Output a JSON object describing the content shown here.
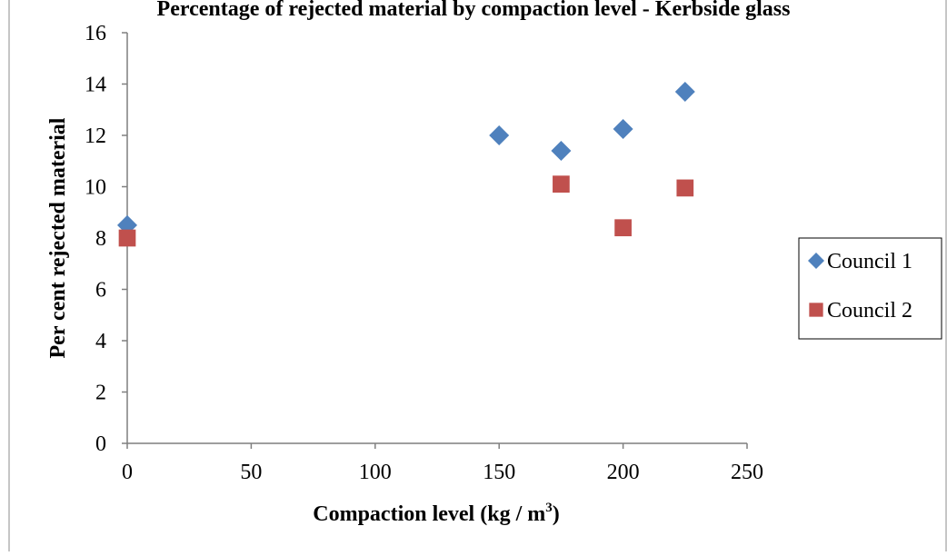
{
  "chart_data": {
    "type": "scatter",
    "title": "Percentage of rejected material by compaction level - Kerbside glass",
    "xlabel": "Compaction level (kg / m",
    "xlabel_sup": "3",
    "xlabel_end": ")",
    "ylabel": "Per cent rejected material",
    "xlim": [
      0,
      250
    ],
    "ylim": [
      0,
      16
    ],
    "x_ticks": [
      0,
      50,
      100,
      150,
      200,
      250
    ],
    "y_ticks": [
      0,
      2,
      4,
      6,
      8,
      10,
      12,
      14,
      16
    ],
    "grid": false,
    "legend_position": "right",
    "series": [
      {
        "name": "Council 1",
        "marker": "diamond",
        "color": "#4F81BD",
        "points": [
          {
            "x": 0,
            "y": 8.5
          },
          {
            "x": 150,
            "y": 12.0
          },
          {
            "x": 175,
            "y": 11.4
          },
          {
            "x": 200,
            "y": 12.25
          },
          {
            "x": 225,
            "y": 13.7
          }
        ]
      },
      {
        "name": "Council 2",
        "marker": "square",
        "color": "#C0504D",
        "points": [
          {
            "x": 0,
            "y": 8.0
          },
          {
            "x": 175,
            "y": 10.1
          },
          {
            "x": 200,
            "y": 8.4
          },
          {
            "x": 225,
            "y": 9.95
          }
        ]
      }
    ]
  }
}
